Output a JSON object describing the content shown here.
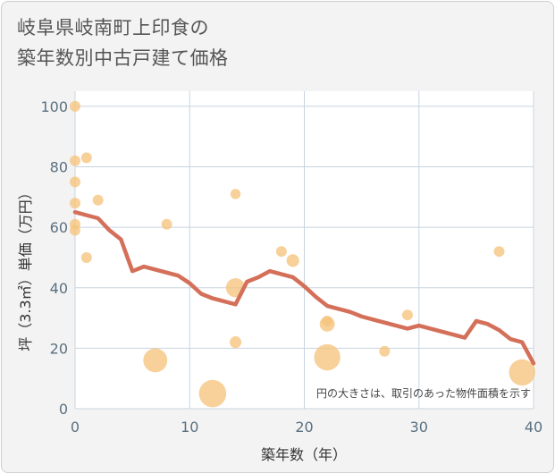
{
  "title_lines": [
    "岐阜県岐南町上印食の",
    "築年数別中古戸建て価格"
  ],
  "chart_data": {
    "type": "scatter+line",
    "title": "岐阜県岐南町上印食の築年数別中古戸建て価格",
    "xlabel": "築年数（年）",
    "ylabel": "坪（3.3㎡）単価（万円）",
    "xlim": [
      0,
      40
    ],
    "ylim": [
      0,
      105
    ],
    "x_ticks": [
      0,
      10,
      20,
      30,
      40
    ],
    "y_ticks": [
      0,
      20,
      40,
      60,
      80,
      100
    ],
    "grid": true,
    "annotation": "円の大きさは、取引のあった物件面積を示す",
    "colors": {
      "bubble": "#f5c47c",
      "line": "#d4705a",
      "grid": "#c8d4e0",
      "background": "#f3f3f3"
    },
    "bubbles": [
      {
        "x": 0,
        "y": 100,
        "size": 1
      },
      {
        "x": 0,
        "y": 82,
        "size": 1
      },
      {
        "x": 0,
        "y": 75,
        "size": 1
      },
      {
        "x": 0,
        "y": 68,
        "size": 1
      },
      {
        "x": 0,
        "y": 61,
        "size": 1
      },
      {
        "x": 0,
        "y": 59,
        "size": 1
      },
      {
        "x": 1,
        "y": 83,
        "size": 1
      },
      {
        "x": 1,
        "y": 50,
        "size": 1
      },
      {
        "x": 2,
        "y": 69,
        "size": 1
      },
      {
        "x": 7,
        "y": 16,
        "size": 5
      },
      {
        "x": 8,
        "y": 61,
        "size": 1
      },
      {
        "x": 12,
        "y": 5,
        "size": 6.5
      },
      {
        "x": 14,
        "y": 71,
        "size": 0.9
      },
      {
        "x": 14,
        "y": 40,
        "size": 3.2
      },
      {
        "x": 14,
        "y": 22,
        "size": 1.2
      },
      {
        "x": 18,
        "y": 52,
        "size": 1
      },
      {
        "x": 19,
        "y": 49,
        "size": 1.4
      },
      {
        "x": 22,
        "y": 29,
        "size": 1
      },
      {
        "x": 22,
        "y": 28,
        "size": 2
      },
      {
        "x": 22,
        "y": 17,
        "size": 6
      },
      {
        "x": 27,
        "y": 19,
        "size": 1
      },
      {
        "x": 29,
        "y": 31,
        "size": 1
      },
      {
        "x": 37,
        "y": 52,
        "size": 1
      },
      {
        "x": 39,
        "y": 12,
        "size": 6
      }
    ],
    "trend": {
      "x": [
        0,
        1,
        2,
        3,
        4,
        5,
        6,
        7,
        8,
        9,
        10,
        11,
        12,
        13,
        14,
        15,
        16,
        17,
        18,
        19,
        20,
        21,
        22,
        23,
        24,
        25,
        26,
        27,
        28,
        29,
        30,
        31,
        32,
        33,
        34,
        35,
        36,
        37,
        38,
        39,
        40
      ],
      "y": [
        65,
        64,
        63,
        59,
        56,
        45.5,
        47,
        46,
        45,
        44,
        41.5,
        38,
        36.5,
        35.5,
        34.5,
        42,
        43.5,
        45.5,
        44.5,
        43.5,
        40.5,
        37,
        34,
        33,
        32,
        30.5,
        29.5,
        28.5,
        27.5,
        26.5,
        27.5,
        26.5,
        25.5,
        24.5,
        23.5,
        29,
        28,
        26,
        23,
        22,
        15
      ]
    }
  }
}
